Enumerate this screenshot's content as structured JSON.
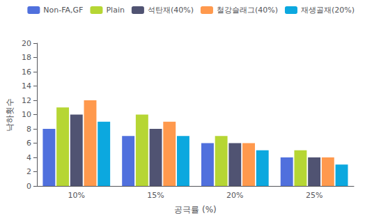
{
  "chart_data": {
    "type": "bar",
    "categories": [
      "10%",
      "15%",
      "20%",
      "25%"
    ],
    "series": [
      {
        "name": "Non-FA,GF",
        "values": [
          8,
          7,
          6,
          4
        ]
      },
      {
        "name": "Plain",
        "values": [
          11,
          10,
          7,
          5
        ]
      },
      {
        "name": "석탄재(40%)",
        "values": [
          10,
          8,
          6,
          4
        ]
      },
      {
        "name": "철강슬래그(40%)",
        "values": [
          12,
          9,
          6,
          4
        ]
      },
      {
        "name": "재생골재(20%)",
        "values": [
          9,
          7,
          5,
          3
        ]
      }
    ],
    "xlabel": "공극률 (%)",
    "ylabel": "낙하횟수",
    "ylim": [
      0,
      20
    ],
    "yticks": [
      0,
      2,
      4,
      6,
      8,
      10,
      12,
      14,
      16,
      18,
      20
    ],
    "grid": false,
    "legend": "upper right"
  }
}
